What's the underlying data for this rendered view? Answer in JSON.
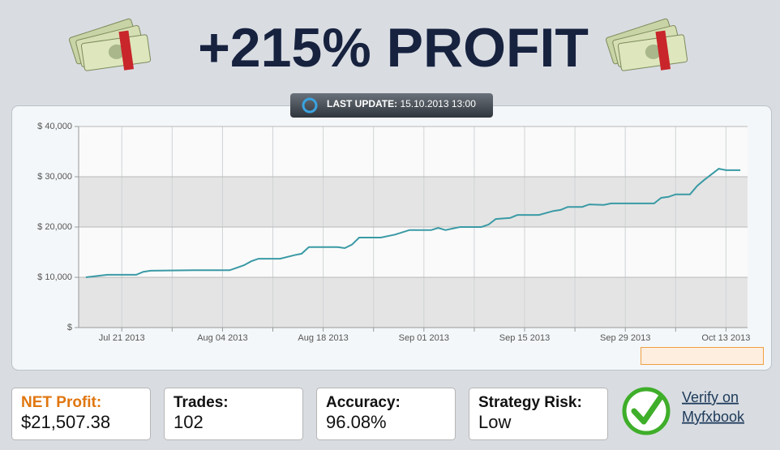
{
  "header": {
    "title": "+215% PROFIT",
    "update_label": "LAST UPDATE:",
    "update_time": "15.10.2013 13:00"
  },
  "chart_data": {
    "type": "line",
    "x": [
      "2013-07-16",
      "2013-07-19",
      "2013-07-23",
      "2013-07-24",
      "2013-07-25",
      "2013-07-31",
      "2013-08-05",
      "2013-08-06",
      "2013-08-07",
      "2013-08-08",
      "2013-08-09",
      "2013-08-12",
      "2013-08-14",
      "2013-08-15",
      "2013-08-16",
      "2013-08-20",
      "2013-08-21",
      "2013-08-22",
      "2013-08-23",
      "2013-08-26",
      "2013-08-28",
      "2013-08-30",
      "2013-09-02",
      "2013-09-03",
      "2013-09-04",
      "2013-09-06",
      "2013-09-09",
      "2013-09-10",
      "2013-09-11",
      "2013-09-13",
      "2013-09-14",
      "2013-09-17",
      "2013-09-19",
      "2013-09-20",
      "2013-09-21",
      "2013-09-23",
      "2013-09-24",
      "2013-09-26",
      "2013-09-27",
      "2013-10-03",
      "2013-10-04",
      "2013-10-05",
      "2013-10-06",
      "2013-10-08",
      "2013-10-09",
      "2013-10-10",
      "2013-10-11",
      "2013-10-12",
      "2013-10-13",
      "2013-10-15"
    ],
    "values": [
      10000,
      10500,
      10500,
      11100,
      11300,
      11400,
      11400,
      11900,
      12400,
      13200,
      13700,
      13700,
      14400,
      14700,
      16000,
      16000,
      15800,
      16500,
      17900,
      17900,
      18500,
      19400,
      19400,
      19800,
      19400,
      20000,
      20000,
      20500,
      21600,
      21800,
      22400,
      22400,
      23200,
      23400,
      24000,
      24000,
      24500,
      24400,
      24700,
      24700,
      25800,
      26000,
      26500,
      26500,
      28200,
      29400,
      30500,
      31600,
      31300,
      31300
    ],
    "color": "#3a9aa5",
    "xlim": [
      "2013-07-15",
      "2013-10-16"
    ],
    "xticks": [
      {
        "value": "2013-07-21",
        "label": "Jul 21 2013"
      },
      {
        "value": "2013-08-04",
        "label": "Aug 04 2013"
      },
      {
        "value": "2013-08-18",
        "label": "Aug 18 2013"
      },
      {
        "value": "2013-09-01",
        "label": "Sep 01 2013"
      },
      {
        "value": "2013-09-15",
        "label": "Sep 15 2013"
      },
      {
        "value": "2013-09-29",
        "label": "Sep 29 2013"
      },
      {
        "value": "2013-10-13",
        "label": "Oct 13 2013"
      }
    ],
    "xminor": [
      "2013-07-28",
      "2013-08-11",
      "2013-08-25",
      "2013-09-08",
      "2013-09-22",
      "2013-10-06"
    ],
    "ylim": [
      0,
      40000
    ],
    "yticks": [
      {
        "value": 0,
        "label": "$"
      },
      {
        "value": 10000,
        "label": "$ 10,000"
      },
      {
        "value": 20000,
        "label": "$ 20,000"
      },
      {
        "value": 30000,
        "label": "$ 30,000"
      },
      {
        "value": 40000,
        "label": "$ 40,000"
      }
    ],
    "grid": true,
    "band_color": "#e4e4e4"
  },
  "stats": [
    {
      "label": "NET Profit:",
      "value": "$21,507.38"
    },
    {
      "label": "Trades:",
      "value": "102"
    },
    {
      "label": "Accuracy:",
      "value": "96.08%"
    },
    {
      "label": "Strategy Risk:",
      "value": "Low"
    }
  ],
  "verify": {
    "line1": "Verify on",
    "line2": "Myfxbook"
  }
}
